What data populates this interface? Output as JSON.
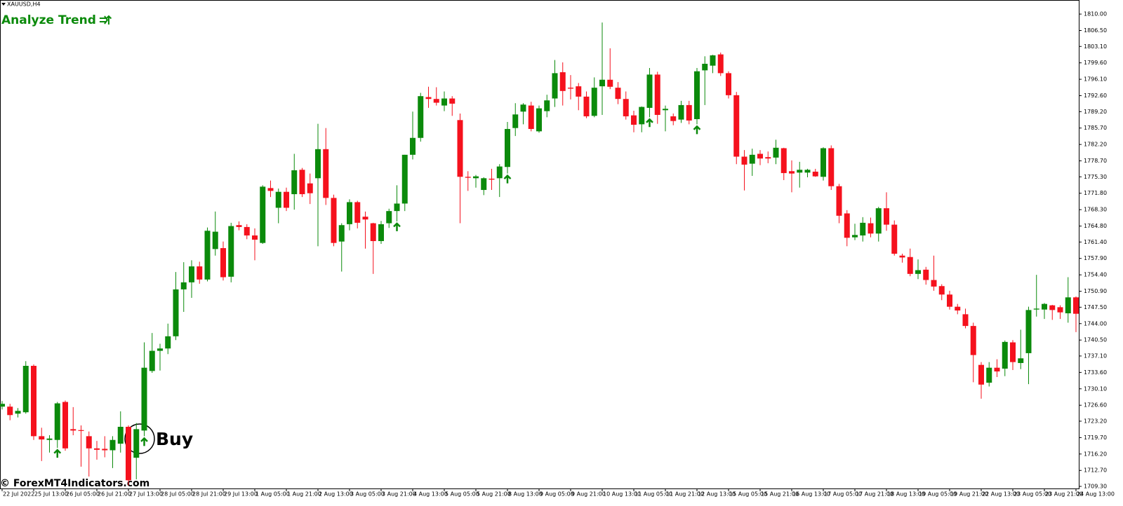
{
  "chart_data": {
    "type": "candlestick",
    "symbol": "XAUUSD,H4",
    "title": "Analyze Trend",
    "annotation": "Buy",
    "watermark": "© ForexMT4Indicators.com",
    "up_color": "#0b8a0b",
    "down_color": "#f5111d",
    "signal_color": "#0b8a0b",
    "open": [
      1726.3,
      1726.3,
      1724.8,
      1725.1,
      1735.0,
      1720.0,
      1719.2,
      1719.2,
      1727.3,
      1721.5,
      1721.3,
      1720.0,
      1717.4,
      1717.3,
      1717.0,
      1718.4,
      1722.0,
      1715.4,
      1721.2,
      1733.9,
      1738.2,
      1738.7,
      1741.3,
      1751.3,
      1752.8,
      1756.2,
      1753.4,
      1759.9,
      1760.1,
      1754.0,
      1765.0,
      1764.6,
      1762.8,
      1761.2,
      1772.9,
      1768.7,
      1772.1,
      1771.6,
      1776.8,
      1773.9,
      1775.0,
      1781.2,
      1770.8,
      1761.5,
      1765.2,
      1769.9,
      1766.8,
      1765.4,
      1761.6,
      1765.4,
      1768.0,
      1769.6,
      1780.0,
      1783.6,
      1792.3,
      1791.9,
      1790.5,
      1792.0,
      1787.4,
      1775.3,
      1775.0,
      1772.5,
      1774.9,
      1775.0,
      1777.4,
      1785.7,
      1789.2,
      1790.5,
      1785.0,
      1789.3,
      1792.0,
      1797.6,
      1794.3,
      1794.6,
      1792.4,
      1788.3,
      1794.6,
      1796.0,
      1794.3,
      1791.9,
      1788.4,
      1786.5,
      1790.0,
      1797.1,
      1789.5,
      1788.2,
      1787.5,
      1790.6,
      1787.6,
      1798.0,
      1799.0,
      1801.4,
      1797.4,
      1792.7,
      1779.6,
      1778.1,
      1780.2,
      1779.5,
      1779.4,
      1781.4,
      1776.5,
      1776.2,
      1776.2,
      1776.4,
      1775.3,
      1781.4,
      1773.3,
      1767.5,
      1762.4,
      1762.8,
      1765.4,
      1763.2,
      1768.6,
      1765.1,
      1758.5,
      1758.2,
      1754.6,
      1755.5,
      1753.3,
      1752.0,
      1750.2,
      1747.6,
      1746.0,
      1743.5,
      1735.2,
      1731.4,
      1734.6,
      1734.4,
      1740.0,
      1735.6,
      1737.7,
      1747.0,
      1747.0,
      1747.9,
      1747.5,
      1746.2,
      1749.6
    ],
    "high": [
      1727.5,
      1726.9,
      1726.0,
      1736.0,
      1735.3,
      1721.8,
      1720.2,
      1727.3,
      1727.6,
      1726.2,
      1722.3,
      1721.0,
      1719.0,
      1720.0,
      1720.0,
      1725.3,
      1722.3,
      1722.8,
      1740.0,
      1742.0,
      1739.7,
      1744.0,
      1755.0,
      1757.1,
      1757.5,
      1757.2,
      1764.5,
      1767.9,
      1761.5,
      1765.5,
      1765.8,
      1765.2,
      1764.3,
      1773.5,
      1774.5,
      1772.8,
      1773.0,
      1780.2,
      1777.2,
      1776.0,
      1786.6,
      1785.7,
      1771.5,
      1765.4,
      1770.5,
      1770.2,
      1767.9,
      1765.5,
      1765.9,
      1768.5,
      1773.5,
      1780.0,
      1789.2,
      1793.2,
      1794.5,
      1794.4,
      1793.5,
      1792.5,
      1788.8,
      1776.5,
      1775.7,
      1775.2,
      1777.0,
      1778.0,
      1787.0,
      1791.0,
      1791.0,
      1791.3,
      1790.5,
      1792.8,
      1800.2,
      1799.7,
      1797.0,
      1795.3,
      1793.5,
      1796.5,
      1808.2,
      1802.7,
      1795.5,
      1793.5,
      1789.4,
      1790.3,
      1798.5,
      1797.7,
      1790.5,
      1788.8,
      1791.5,
      1791.5,
      1798.5,
      1801.0,
      1801.3,
      1801.8,
      1797.8,
      1793.4,
      1781.0,
      1781.3,
      1781.0,
      1780.7,
      1783.2,
      1781.5,
      1778.8,
      1778.5,
      1777.0,
      1777.0,
      1781.6,
      1782.0,
      1773.8,
      1768.2,
      1765.3,
      1766.7,
      1766.6,
      1768.9,
      1772.0,
      1766.0,
      1758.9,
      1760.0,
      1757.7,
      1756.1,
      1758.5,
      1752.4,
      1751.0,
      1748.2,
      1747.2,
      1744.2,
      1735.8,
      1735.8,
      1736.4,
      1740.4,
      1740.5,
      1742.7,
      1747.6,
      1754.4,
      1748.4,
      1748.0,
      1747.9,
      1753.9,
      1749.8
    ],
    "low": [
      1725.7,
      1723.4,
      1724.0,
      1724.8,
      1719.2,
      1714.7,
      1716.5,
      1717.5,
      1716.9,
      1720.2,
      1713.5,
      1711.4,
      1715.0,
      1715.5,
      1713.2,
      1716.5,
      1709.5,
      1710.8,
      1720.0,
      1733.5,
      1734.0,
      1737.5,
      1740.5,
      1746.5,
      1749.5,
      1752.5,
      1753.0,
      1758.5,
      1753.2,
      1752.8,
      1763.9,
      1762.0,
      1757.5,
      1761.0,
      1771.0,
      1765.4,
      1768.0,
      1768.3,
      1771.0,
      1769.5,
      1760.5,
      1769.3,
      1760.5,
      1755.1,
      1763.9,
      1764.3,
      1760.0,
      1754.6,
      1761.0,
      1764.4,
      1765.8,
      1768.0,
      1779.0,
      1782.8,
      1790.0,
      1790.5,
      1789.3,
      1788.3,
      1765.4,
      1772.3,
      1773.0,
      1771.4,
      1772.5,
      1771.0,
      1776.0,
      1784.0,
      1786.5,
      1785.0,
      1784.7,
      1788.0,
      1790.2,
      1790.5,
      1791.8,
      1789.5,
      1787.8,
      1788.0,
      1788.5,
      1794.0,
      1790.8,
      1787.5,
      1784.8,
      1784.8,
      1788.0,
      1786.6,
      1785.0,
      1786.3,
      1786.8,
      1786.5,
      1786.5,
      1790.6,
      1797.4,
      1796.8,
      1792.0,
      1778.0,
      1772.4,
      1775.5,
      1777.8,
      1778.2,
      1778.0,
      1774.6,
      1772.0,
      1773.0,
      1775.2,
      1775.3,
      1774.5,
      1772.5,
      1765.4,
      1760.5,
      1761.8,
      1761.5,
      1762.4,
      1761.5,
      1763.8,
      1758.5,
      1757.0,
      1754.1,
      1753.5,
      1752.3,
      1751.0,
      1749.0,
      1747.0,
      1746.0,
      1743.0,
      1731.5,
      1728.0,
      1730.6,
      1732.6,
      1732.8,
      1734.1,
      1734.3,
      1731.1,
      1745.5,
      1745.0,
      1744.8,
      1745.0,
      1744.2,
      1742.2
    ],
    "close": [
      1726.9,
      1724.5,
      1725.4,
      1735.0,
      1720.0,
      1719.3,
      1719.5,
      1727.0,
      1717.4,
      1721.2,
      1721.2,
      1717.4,
      1717.1,
      1717.0,
      1719.2,
      1722.0,
      1710.6,
      1721.5,
      1734.6,
      1738.2,
      1738.7,
      1741.3,
      1751.3,
      1752.8,
      1756.2,
      1753.4,
      1763.8,
      1763.6,
      1753.9,
      1764.8,
      1764.6,
      1762.8,
      1761.9,
      1773.2,
      1772.3,
      1772.1,
      1768.7,
      1776.7,
      1771.6,
      1771.8,
      1781.2,
      1770.8,
      1761.2,
      1765.0,
      1769.9,
      1765.5,
      1766.2,
      1761.6,
      1765.2,
      1768.0,
      1769.6,
      1780.0,
      1783.6,
      1792.5,
      1791.9,
      1791.1,
      1792.0,
      1790.9,
      1775.3,
      1775.1,
      1775.4,
      1775.0,
      1774.7,
      1777.5,
      1785.5,
      1788.6,
      1790.7,
      1785.5,
      1789.9,
      1791.6,
      1797.4,
      1793.6,
      1794.1,
      1792.4,
      1788.2,
      1794.3,
      1796.0,
      1794.5,
      1791.9,
      1788.2,
      1786.4,
      1790.2,
      1797.1,
      1788.5,
      1789.8,
      1787.2,
      1790.6,
      1787.3,
      1797.8,
      1799.4,
      1801.2,
      1797.4,
      1792.7,
      1779.6,
      1777.9,
      1780.0,
      1779.2,
      1779.2,
      1781.5,
      1776.1,
      1776.0,
      1776.8,
      1776.8,
      1775.4,
      1781.4,
      1773.3,
      1767.0,
      1762.3,
      1762.9,
      1765.5,
      1763.2,
      1768.6,
      1765.1,
      1758.9,
      1758.1,
      1754.6,
      1755.4,
      1753.3,
      1751.9,
      1750.2,
      1747.6,
      1746.8,
      1743.5,
      1737.3,
      1731.0,
      1734.6,
      1733.8,
      1740.1,
      1735.8,
      1736.6,
      1746.9,
      1747.2,
      1748.2,
      1746.9,
      1746.4,
      1749.6,
      1746.1
    ],
    "signals": [
      7,
      18,
      50,
      64,
      82,
      88
    ],
    "ylim": [
      1708.85,
      1813
    ],
    "yticks": [
      {
        "value": 1810.0,
        "label": "1810.00"
      },
      {
        "value": 1806.5,
        "label": "1806.50"
      },
      {
        "value": 1803.1,
        "label": "1803.10"
      },
      {
        "value": 1799.6,
        "label": "1799.60"
      },
      {
        "value": 1796.1,
        "label": "1796.10"
      },
      {
        "value": 1792.6,
        "label": "1792.60"
      },
      {
        "value": 1789.2,
        "label": "1789.20"
      },
      {
        "value": 1785.7,
        "label": "1785.70"
      },
      {
        "value": 1782.2,
        "label": "1782.20"
      },
      {
        "value": 1778.7,
        "label": "1778.70"
      },
      {
        "value": 1775.3,
        "label": "1775.30"
      },
      {
        "value": 1771.8,
        "label": "1771.80"
      },
      {
        "value": 1768.3,
        "label": "1768.30"
      },
      {
        "value": 1764.8,
        "label": "1764.80"
      },
      {
        "value": 1761.4,
        "label": "1761.40"
      },
      {
        "value": 1757.9,
        "label": "1757.90"
      },
      {
        "value": 1754.4,
        "label": "1754.40"
      },
      {
        "value": 1750.9,
        "label": "1750.90"
      },
      {
        "value": 1747.5,
        "label": "1747.50"
      },
      {
        "value": 1744.0,
        "label": "1744.00"
      },
      {
        "value": 1740.5,
        "label": "1740.50"
      },
      {
        "value": 1737.1,
        "label": "1737.10"
      },
      {
        "value": 1733.6,
        "label": "1733.60"
      },
      {
        "value": 1730.1,
        "label": "1730.10"
      },
      {
        "value": 1726.6,
        "label": "1726.60"
      },
      {
        "value": 1723.2,
        "label": "1723.20"
      },
      {
        "value": 1719.7,
        "label": "1719.70"
      },
      {
        "value": 1716.2,
        "label": "1716.20"
      },
      {
        "value": 1712.7,
        "label": "1712.70"
      },
      {
        "value": 1709.3,
        "label": "1709.30"
      }
    ],
    "xticks": [
      {
        "value": 0,
        "label": "22 Jul 2022"
      },
      {
        "value": 4,
        "label": "25 Jul 13:00"
      },
      {
        "value": 8,
        "label": "26 Jul 05:00"
      },
      {
        "value": 12,
        "label": "26 Jul 21:00"
      },
      {
        "value": 16,
        "label": "27 Jul 13:00"
      },
      {
        "value": 20,
        "label": "28 Jul 05:00"
      },
      {
        "value": 24,
        "label": "28 Jul 21:00"
      },
      {
        "value": 28,
        "label": "29 Jul 13:00"
      },
      {
        "value": 32,
        "label": "1 Aug 05:00"
      },
      {
        "value": 36,
        "label": "1 Aug 21:00"
      },
      {
        "value": 40,
        "label": "2 Aug 13:00"
      },
      {
        "value": 44,
        "label": "3 Aug 05:00"
      },
      {
        "value": 48,
        "label": "3 Aug 21:00"
      },
      {
        "value": 52,
        "label": "4 Aug 13:00"
      },
      {
        "value": 56,
        "label": "5 Aug 05:00"
      },
      {
        "value": 60,
        "label": "5 Aug 21:00"
      },
      {
        "value": 64,
        "label": "8 Aug 13:00"
      },
      {
        "value": 68,
        "label": "9 Aug 05:00"
      },
      {
        "value": 72,
        "label": "9 Aug 21:00"
      },
      {
        "value": 76,
        "label": "10 Aug 13:00"
      },
      {
        "value": 80,
        "label": "11 Aug 05:00"
      },
      {
        "value": 84,
        "label": "11 Aug 21:00"
      },
      {
        "value": 88,
        "label": "12 Aug 13:00"
      },
      {
        "value": 92,
        "label": "15 Aug 05:00"
      },
      {
        "value": 96,
        "label": "15 Aug 21:00"
      },
      {
        "value": 100,
        "label": "16 Aug 13:00"
      },
      {
        "value": 104,
        "label": "17 Aug 05:00"
      },
      {
        "value": 108,
        "label": "17 Aug 21:00"
      },
      {
        "value": 112,
        "label": "18 Aug 13:00"
      },
      {
        "value": 116,
        "label": "19 Aug 05:00"
      },
      {
        "value": 120,
        "label": "19 Aug 21:00"
      },
      {
        "value": 124,
        "label": "22 Aug 13:00"
      },
      {
        "value": 128,
        "label": "23 Aug 05:00"
      },
      {
        "value": 132,
        "label": "23 Aug 21:00"
      },
      {
        "value": 136,
        "label": "24 Aug 13:00"
      }
    ]
  }
}
